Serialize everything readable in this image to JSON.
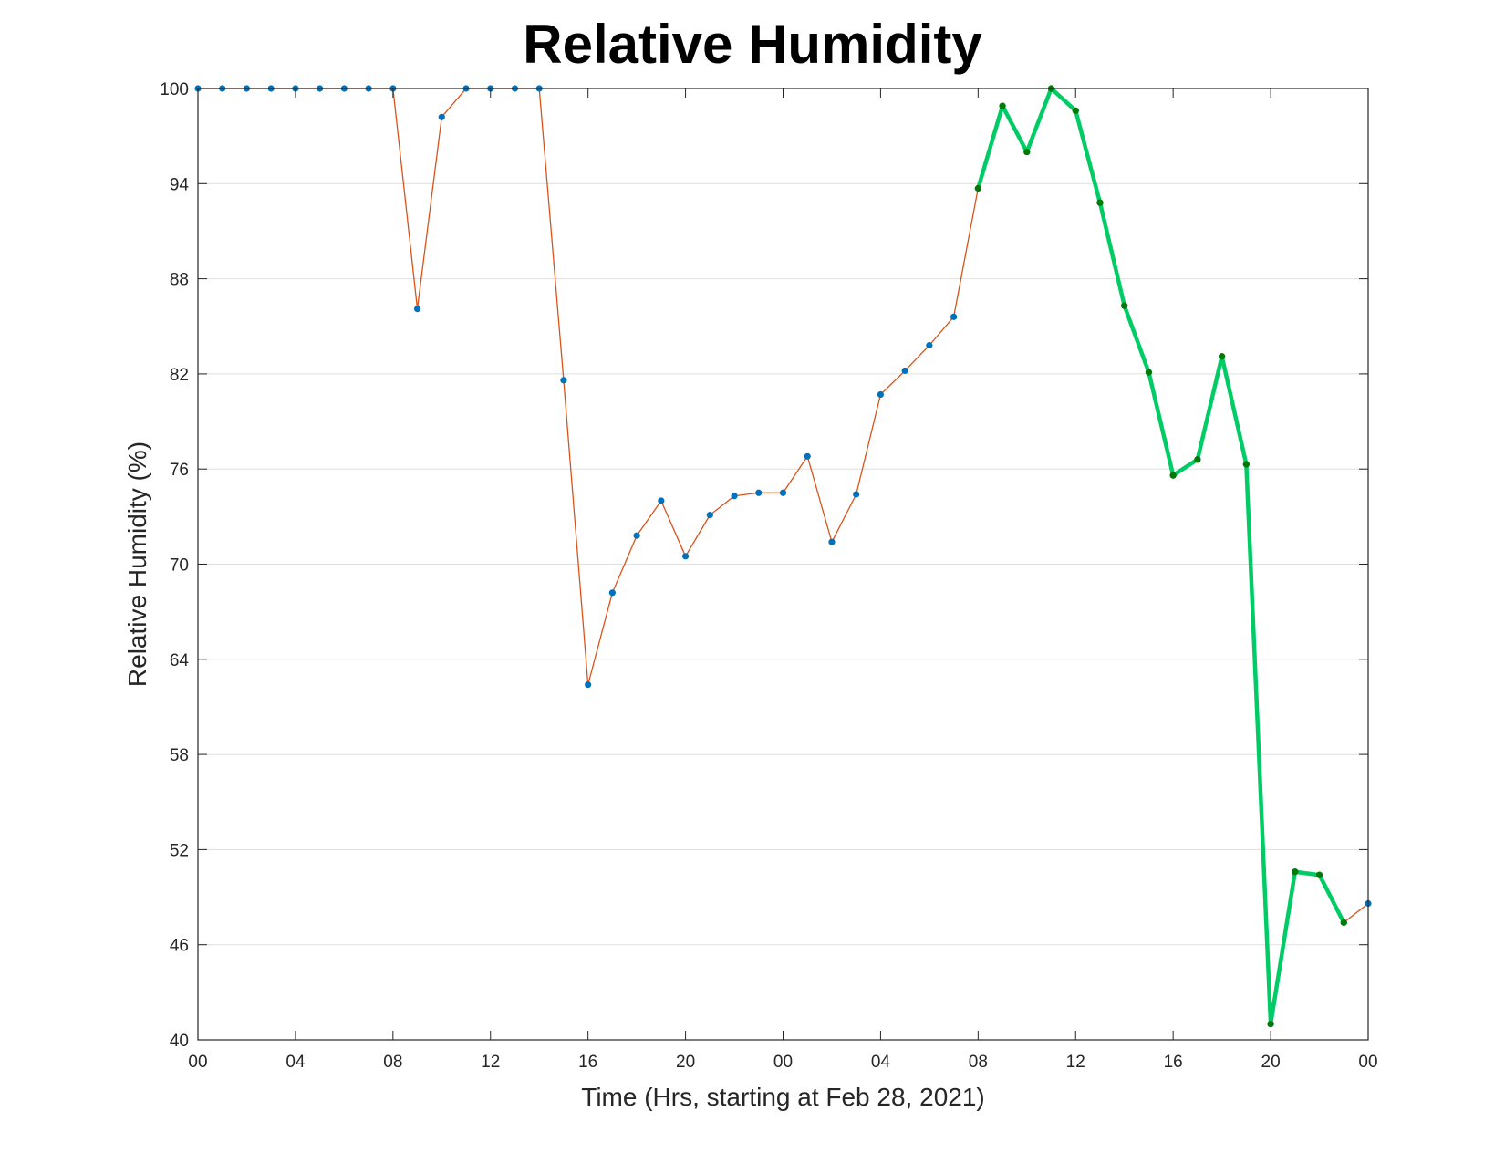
{
  "chart_data": {
    "type": "line",
    "title": "Relative Humidity",
    "xlabel": "Time (Hrs, starting at Feb 28, 2021)",
    "ylabel": "Relative Humidity (%)",
    "ylim": [
      40,
      100
    ],
    "yticks": [
      "40",
      "46",
      "52",
      "58",
      "64",
      "70",
      "76",
      "82",
      "88",
      "94",
      "100"
    ],
    "xlim": [
      0,
      48
    ],
    "xtick_hours": [
      0,
      4,
      8,
      12,
      16,
      20,
      24,
      28,
      32,
      36,
      40,
      44,
      48
    ],
    "xtick_labels": [
      "00",
      "04",
      "08",
      "12",
      "16",
      "20",
      "00",
      "04",
      "08",
      "12",
      "16",
      "20",
      "00"
    ],
    "grid": "horizontal",
    "series": [
      {
        "style": "thin orange line with blue dot markers",
        "line_color": "#D95319",
        "marker_color": "#0072BD",
        "x": [
          0,
          1,
          2,
          3,
          4,
          5,
          6,
          7,
          8,
          9,
          10,
          11,
          12,
          13,
          14,
          15,
          16,
          17,
          18,
          19,
          20,
          21,
          22,
          23,
          24,
          25,
          26,
          27,
          28,
          29,
          30,
          31,
          32,
          33,
          34,
          35,
          36,
          37,
          38,
          39,
          40,
          41,
          42,
          43,
          44,
          45,
          46,
          47,
          48
        ],
        "values": [
          100,
          100,
          100,
          100,
          100,
          100,
          100,
          100,
          100,
          86.1,
          98.2,
          100,
          100,
          100,
          100,
          81.6,
          62.4,
          68.2,
          71.8,
          74.0,
          70.5,
          73.1,
          74.3,
          74.5,
          74.5,
          76.8,
          71.4,
          74.4,
          80.7,
          82.2,
          83.8,
          85.6,
          93.7,
          98.9,
          96.0,
          100,
          98.6,
          92.8,
          86.3,
          82.1,
          75.6,
          76.6,
          83.1,
          76.3,
          41.0,
          50.6,
          50.4,
          47.4,
          48.6
        ]
      },
      {
        "style": "thick green line with dark green dot markers",
        "line_color": "#00CC66",
        "marker_color": "#007A00",
        "x": [
          32,
          33,
          34,
          35,
          36,
          37,
          38,
          39,
          40,
          41,
          42,
          43,
          44,
          45,
          46,
          47
        ],
        "values": [
          93.7,
          98.9,
          96.0,
          100,
          98.6,
          92.8,
          86.3,
          82.1,
          75.6,
          76.6,
          83.1,
          76.3,
          41.0,
          50.6,
          50.4,
          47.4
        ]
      }
    ]
  }
}
